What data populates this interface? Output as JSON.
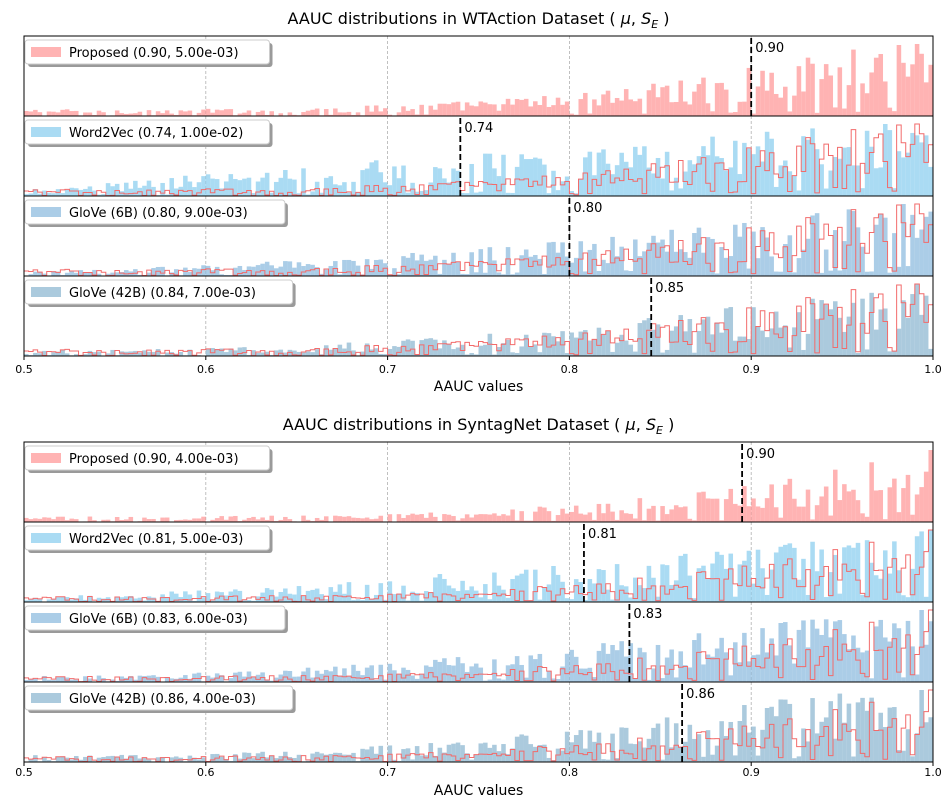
{
  "chart_data": [
    {
      "type": "bar",
      "title": "AAUC distributions in WTAction Dataset ( μ, S_E )",
      "title_parts": {
        "main": "AAUC distributions in WTAction Dataset ( ",
        "mu": "μ",
        "sep": ", ",
        "s": "S",
        "sub": "E",
        "end": " )"
      },
      "xlabel": "AAUC values",
      "xlim": [
        0.5,
        1.0
      ],
      "xticks": [
        "0.5",
        "0.6",
        "0.7",
        "0.8",
        "0.9",
        "1.0"
      ],
      "grid": "vertical dashed",
      "legend_placement": "top-left",
      "reference_series": "Proposed",
      "panels": [
        {
          "name": "Proposed",
          "legend": "Proposed (0.90, 5.00e-03)",
          "mean": 0.9,
          "mean_label": "0.90",
          "se": 0.005,
          "color": "#ff9999",
          "concentration": 3.2
        },
        {
          "name": "Word2Vec",
          "legend": "Word2Vec (0.74, 1.00e-02)",
          "mean": 0.74,
          "mean_label": "0.74",
          "se": 0.01,
          "color": "#8ecfef",
          "concentration": 0.9
        },
        {
          "name": "GloVe (6B)",
          "legend": "GloVe (6B) (0.80, 9.00e-03)",
          "mean": 0.8,
          "mean_label": "0.80",
          "se": 0.009,
          "color": "#8fbcdf",
          "concentration": 1.6
        },
        {
          "name": "GloVe (42B)",
          "legend": "GloVe (42B) (0.84, 7.00e-03)",
          "mean": 0.845,
          "mean_label": "0.85",
          "se": 0.007,
          "color": "#8fb8d2",
          "concentration": 2.2
        }
      ]
    },
    {
      "type": "bar",
      "title": "AAUC distributions in SyntagNet Dataset ( μ, S_E )",
      "title_parts": {
        "main": "AAUC distributions in SyntagNet Dataset ( ",
        "mu": "μ",
        "sep": ", ",
        "s": "S",
        "sub": "E",
        "end": " )"
      },
      "xlabel": "AAUC values",
      "xlim": [
        0.5,
        1.0
      ],
      "xticks": [
        "0.5",
        "0.6",
        "0.7",
        "0.8",
        "0.9",
        "1.0"
      ],
      "grid": "vertical dashed",
      "legend_placement": "top-left",
      "reference_series": "Proposed",
      "panels": [
        {
          "name": "Proposed",
          "legend": "Proposed (0.90, 4.00e-03)",
          "mean": 0.895,
          "mean_label": "0.90",
          "se": 0.004,
          "color": "#ff9999",
          "concentration": 3.4
        },
        {
          "name": "Word2Vec",
          "legend": "Word2Vec (0.81, 5.00e-03)",
          "mean": 0.808,
          "mean_label": "0.81",
          "se": 0.005,
          "color": "#8ecfef",
          "concentration": 1.4
        },
        {
          "name": "GloVe (6B)",
          "legend": "GloVe (6B) (0.83, 6.00e-03)",
          "mean": 0.833,
          "mean_label": "0.83",
          "se": 0.006,
          "color": "#8fbcdf",
          "concentration": 1.9
        },
        {
          "name": "GloVe (42B)",
          "legend": "GloVe (42B) (0.86, 4.00e-03)",
          "mean": 0.862,
          "mean_label": "0.86",
          "se": 0.004,
          "color": "#8fb8d2",
          "concentration": 2.4
        }
      ]
    }
  ]
}
